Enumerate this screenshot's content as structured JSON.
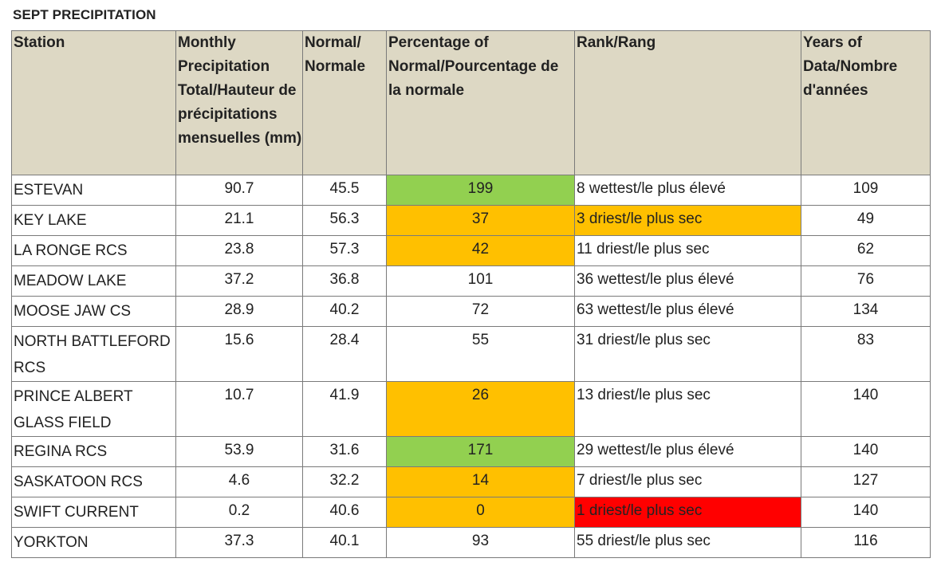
{
  "title": "SEPT PRECIPITATION",
  "colors": {
    "header_bg": "#ddd8c4",
    "above_normal": "#92d050",
    "below_normal": "#ffc000",
    "record": "#ff0000"
  },
  "headers": {
    "station": "Station",
    "monthly": "Monthly Precipitation Total/Hauteur de précipitations mensuelles (mm)",
    "normal": "Normal/ Normale",
    "percentage": "Percentage of Normal/Pourcentage de la normale",
    "rank": "Rank/Rang",
    "years": "Years of Data/Nombre d'années"
  },
  "rows": [
    {
      "station": "ESTEVAN",
      "monthly": "90.7",
      "normal": "45.5",
      "pct": "199",
      "rank": "8 wettest/le plus élevé",
      "years": "109"
    },
    {
      "station": "KEY LAKE",
      "monthly": "21.1",
      "normal": "56.3",
      "pct": "37",
      "rank": "3 driest/le plus sec",
      "years": "49"
    },
    {
      "station": "LA RONGE RCS",
      "monthly": "23.8",
      "normal": "57.3",
      "pct": "42",
      "rank": "11 driest/le plus sec",
      "years": "62"
    },
    {
      "station": "MEADOW LAKE",
      "monthly": "37.2",
      "normal": "36.8",
      "pct": "101",
      "rank": "36 wettest/le plus élevé",
      "years": "76"
    },
    {
      "station": "MOOSE JAW CS",
      "monthly": "28.9",
      "normal": "40.2",
      "pct": "72",
      "rank": "63 wettest/le plus élevé",
      "years": "134"
    },
    {
      "station": "NORTH BATTLEFORD RCS",
      "monthly": "15.6",
      "normal": "28.4",
      "pct": "55",
      "rank": "31 driest/le plus sec",
      "years": "83"
    },
    {
      "station": "PRINCE ALBERT GLASS FIELD",
      "monthly": "10.7",
      "normal": "41.9",
      "pct": "26",
      "rank": "13 driest/le plus sec",
      "years": "140"
    },
    {
      "station": "REGINA RCS",
      "monthly": "53.9",
      "normal": "31.6",
      "pct": "171",
      "rank": "29 wettest/le plus élevé",
      "years": "140"
    },
    {
      "station": "SASKATOON RCS",
      "monthly": "4.6",
      "normal": "32.2",
      "pct": "14",
      "rank": "7 driest/le plus sec",
      "years": "127"
    },
    {
      "station": "SWIFT CURRENT",
      "monthly": "0.2",
      "normal": "40.6",
      "pct": "0",
      "rank": "1 driest/le plus sec",
      "years": "140"
    },
    {
      "station": "YORKTON",
      "monthly": "37.3",
      "normal": "40.1",
      "pct": "93",
      "rank": "55 driest/le plus sec",
      "years": "116"
    }
  ]
}
